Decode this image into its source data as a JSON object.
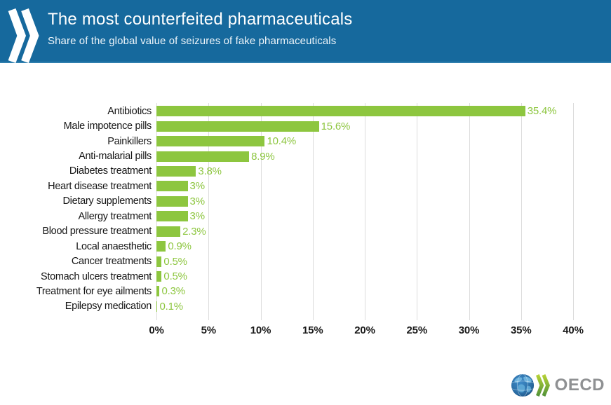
{
  "header": {
    "title": "The most counterfeited pharmaceuticals",
    "subtitle": "Share of the global value of seizures of fake pharmaceuticals",
    "background_color": "#16699d"
  },
  "chart_data": {
    "type": "bar",
    "orientation": "horizontal",
    "title": "The most counterfeited pharmaceuticals",
    "subtitle": "Share of the global value of seizures of fake pharmaceuticals",
    "categories": [
      "Antibiotics",
      "Male impotence pills",
      "Painkillers",
      "Anti-malarial pills",
      "Diabetes treatment",
      "Heart disease treatment",
      "Dietary supplements",
      "Allergy treatment",
      "Blood pressure treatment",
      "Local anaesthetic",
      "Cancer treatments",
      "Stomach ulcers treatment",
      "Treatment for eye ailments",
      "Epilepsy medication"
    ],
    "values": [
      35.4,
      15.6,
      10.4,
      8.9,
      3.8,
      3,
      3,
      3,
      2.3,
      0.9,
      0.5,
      0.5,
      0.3,
      0.1
    ],
    "value_labels": [
      "35.4%",
      "15.6%",
      "10.4%",
      "8.9%",
      "3.8%",
      "3%",
      "3%",
      "3%",
      "2.3%",
      "0.9%",
      "0.5%",
      "0.5%",
      "0.3%",
      "0.1%"
    ],
    "xlim": [
      0,
      40
    ],
    "x_ticks": [
      0,
      5,
      10,
      15,
      20,
      25,
      30,
      35,
      40
    ],
    "x_tick_labels": [
      "0%",
      "5%",
      "10%",
      "15%",
      "20%",
      "25%",
      "30%",
      "35%",
      "40%"
    ],
    "bar_color": "#8dc63f",
    "value_label_color": "#8dc63f",
    "gridline_color": "#dcdcdc",
    "grid": "vertical",
    "legend": "none"
  },
  "footer": {
    "logo_text": "OECD"
  }
}
